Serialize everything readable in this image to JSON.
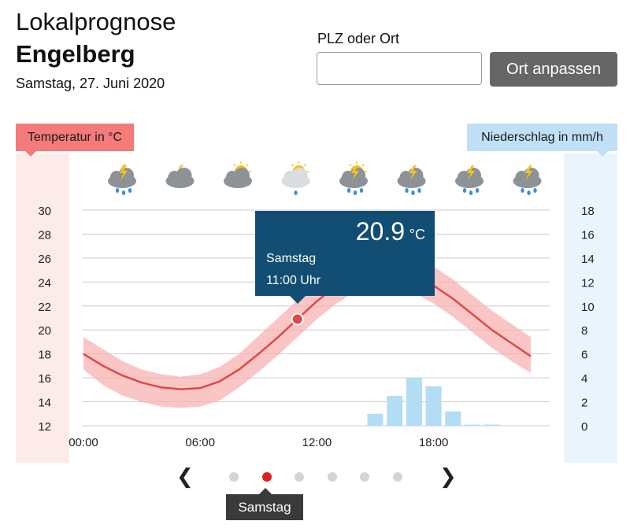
{
  "header": {
    "title": "Lokalprognose",
    "location": "Engelberg",
    "date": "Samstag, 27. Juni 2020"
  },
  "search": {
    "label": "PLZ oder Ort",
    "value": "",
    "placeholder": "",
    "button_label": "Ort anpassen"
  },
  "colors": {
    "temperature_accent": "#f47b79",
    "temperature_line": "#e04848",
    "precipitation_accent": "#bfe0f7",
    "tooltip_bg": "#124e73",
    "active_dot": "#e0201e"
  },
  "weather_icons": [
    {
      "time": "01:00",
      "icon": "thunderstorm-rain-moon-icon"
    },
    {
      "time": "04:00",
      "icon": "cloudy-moon-icon"
    },
    {
      "time": "07:00",
      "icon": "cloudy-sun-icon"
    },
    {
      "time": "10:00",
      "icon": "sun-cloud-rain-icon"
    },
    {
      "time": "13:00",
      "icon": "thunderstorm-rain-sun-icon"
    },
    {
      "time": "16:00",
      "icon": "thunderstorm-rain-icon"
    },
    {
      "time": "19:00",
      "icon": "thunderstorm-rain-icon"
    },
    {
      "time": "22:00",
      "icon": "thunderstorm-rain-icon"
    }
  ],
  "tooltip": {
    "value": "20.9",
    "unit": "°C",
    "day": "Samstag",
    "time": "11:00 Uhr"
  },
  "pager": {
    "prev_icon": "chevron-left-icon",
    "next_icon": "chevron-right-icon",
    "dot_count": 6,
    "active_index": 1,
    "active_label": "Samstag"
  },
  "chart_data": {
    "type": "line",
    "xlabel": "",
    "x_ticks": [
      "00:00",
      "06:00",
      "12:00",
      "18:00"
    ],
    "grid": true,
    "y_left": {
      "label": "Temperatur in °C",
      "ticks": [
        "30",
        "28",
        "26",
        "24",
        "22",
        "20",
        "18",
        "16",
        "14",
        "12"
      ],
      "ylim": [
        12,
        30
      ]
    },
    "y_right": {
      "label": "Niederschlag in mm/h",
      "ticks": [
        "18",
        "16",
        "14",
        "12",
        "10",
        "8",
        "6",
        "4",
        "2",
        "0"
      ],
      "ylim": [
        0,
        18
      ]
    },
    "temperature": {
      "x": [
        0,
        1,
        2,
        3,
        4,
        5,
        6,
        7,
        8,
        9,
        10,
        11,
        12,
        13,
        14,
        15,
        16,
        17,
        18,
        19,
        20,
        21,
        22,
        23
      ],
      "values": [
        18.0,
        17.0,
        16.2,
        15.6,
        15.2,
        15.05,
        15.15,
        15.7,
        16.7,
        18.0,
        19.4,
        20.9,
        22.4,
        23.7,
        24.7,
        25.2,
        25.1,
        24.6,
        23.7,
        22.6,
        21.3,
        20.0,
        18.9,
        17.8
      ],
      "band_low": [
        16.7,
        15.4,
        14.5,
        14.0,
        13.6,
        13.5,
        13.6,
        14.1,
        15.2,
        16.5,
        17.9,
        19.4,
        20.9,
        22.2,
        23.2,
        23.7,
        23.6,
        23.1,
        22.2,
        21.1,
        19.8,
        18.5,
        17.4,
        16.4
      ],
      "band_high": [
        19.4,
        18.4,
        17.4,
        16.7,
        16.3,
        16.1,
        16.3,
        16.9,
        18.0,
        19.5,
        21.0,
        22.5,
        24.0,
        25.3,
        26.3,
        26.8,
        26.7,
        26.2,
        25.3,
        24.2,
        22.9,
        21.6,
        20.5,
        19.4
      ]
    },
    "precipitation": {
      "x": [
        15,
        16,
        17,
        18,
        19,
        20,
        21
      ],
      "values": [
        1.0,
        2.5,
        4.0,
        3.3,
        1.2,
        0.1,
        0.1
      ]
    },
    "highlight": {
      "x": 11,
      "value": 20.9
    }
  }
}
